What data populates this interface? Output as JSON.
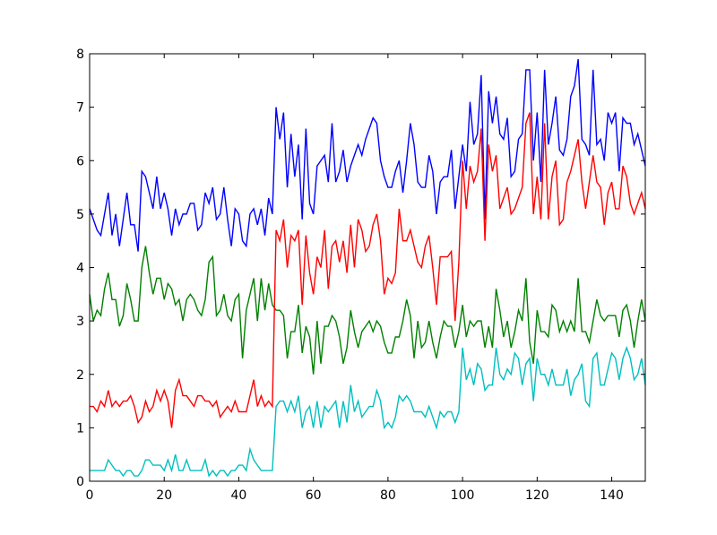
{
  "chart_data": {
    "type": "line",
    "title": "",
    "xlabel": "",
    "ylabel": "",
    "xlim": [
      0,
      149
    ],
    "ylim": [
      0,
      8
    ],
    "x_ticks": [
      0,
      20,
      40,
      60,
      80,
      100,
      120,
      140
    ],
    "y_ticks": [
      0,
      1,
      2,
      3,
      4,
      5,
      6,
      7,
      8
    ],
    "grid": false,
    "legend": "none",
    "series": [
      {
        "color": "#0000ff",
        "values": [
          5.1,
          4.9,
          4.7,
          4.6,
          5.0,
          5.4,
          4.6,
          5.0,
          4.4,
          4.9,
          5.4,
          4.8,
          4.8,
          4.3,
          5.8,
          5.7,
          5.4,
          5.1,
          5.7,
          5.1,
          5.4,
          5.1,
          4.6,
          5.1,
          4.8,
          5.0,
          5.0,
          5.2,
          5.2,
          4.7,
          4.8,
          5.4,
          5.2,
          5.5,
          4.9,
          5.0,
          5.5,
          4.9,
          4.4,
          5.1,
          5.0,
          4.5,
          4.4,
          5.0,
          5.1,
          4.8,
          5.1,
          4.6,
          5.3,
          5.0,
          7.0,
          6.4,
          6.9,
          5.5,
          6.5,
          5.7,
          6.3,
          4.9,
          6.6,
          5.2,
          5.0,
          5.9,
          6.0,
          6.1,
          5.6,
          6.7,
          5.6,
          5.8,
          6.2,
          5.6,
          5.9,
          6.1,
          6.3,
          6.1,
          6.4,
          6.6,
          6.8,
          6.7,
          6.0,
          5.7,
          5.5,
          5.5,
          5.8,
          6.0,
          5.4,
          6.0,
          6.7,
          6.3,
          5.6,
          5.5,
          5.5,
          6.1,
          5.8,
          5.0,
          5.6,
          5.7,
          5.7,
          6.2,
          5.1,
          5.7,
          6.3,
          5.8,
          7.1,
          6.3,
          6.5,
          7.6,
          4.9,
          7.3,
          6.7,
          7.2,
          6.5,
          6.4,
          6.8,
          5.7,
          5.8,
          6.4,
          6.5,
          7.7,
          7.7,
          6.0,
          6.9,
          5.6,
          7.7,
          6.3,
          6.7,
          7.2,
          6.2,
          6.1,
          6.4,
          7.2,
          7.4,
          7.9,
          6.4,
          6.3,
          6.1,
          7.7,
          6.3,
          6.4,
          6.0,
          6.9,
          6.7,
          6.9,
          5.8,
          6.8,
          6.7,
          6.7,
          6.3,
          6.5,
          6.2,
          5.9
        ]
      },
      {
        "color": "#008000",
        "values": [
          3.5,
          3.0,
          3.2,
          3.1,
          3.6,
          3.9,
          3.4,
          3.4,
          2.9,
          3.1,
          3.7,
          3.4,
          3.0,
          3.0,
          4.0,
          4.4,
          3.9,
          3.5,
          3.8,
          3.8,
          3.4,
          3.7,
          3.6,
          3.3,
          3.4,
          3.0,
          3.4,
          3.5,
          3.4,
          3.2,
          3.1,
          3.4,
          4.1,
          4.2,
          3.1,
          3.2,
          3.5,
          3.1,
          3.0,
          3.4,
          3.5,
          2.3,
          3.2,
          3.5,
          3.8,
          3.0,
          3.8,
          3.2,
          3.7,
          3.3,
          3.2,
          3.2,
          3.1,
          2.3,
          2.8,
          2.8,
          3.3,
          2.4,
          2.9,
          2.7,
          2.0,
          3.0,
          2.2,
          2.9,
          2.9,
          3.1,
          3.0,
          2.7,
          2.2,
          2.5,
          3.2,
          2.8,
          2.5,
          2.8,
          2.9,
          3.0,
          2.8,
          3.0,
          2.9,
          2.6,
          2.4,
          2.4,
          2.7,
          2.7,
          3.0,
          3.4,
          3.1,
          2.3,
          3.0,
          2.5,
          2.6,
          3.0,
          2.6,
          2.3,
          2.7,
          3.0,
          2.9,
          2.9,
          2.5,
          2.8,
          3.3,
          2.7,
          3.0,
          2.9,
          3.0,
          3.0,
          2.5,
          2.9,
          2.5,
          3.6,
          3.2,
          2.7,
          3.0,
          2.5,
          2.8,
          3.2,
          3.0,
          3.8,
          2.6,
          2.2,
          3.2,
          2.8,
          2.8,
          2.7,
          3.3,
          3.2,
          2.8,
          3.0,
          2.8,
          3.0,
          2.8,
          3.8,
          2.8,
          2.8,
          2.6,
          3.0,
          3.4,
          3.1,
          3.0,
          3.1,
          3.1,
          3.1,
          2.7,
          3.2,
          3.3,
          3.0,
          2.5,
          3.0,
          3.4,
          3.0
        ]
      },
      {
        "color": "#ff0000",
        "values": [
          1.4,
          1.4,
          1.3,
          1.5,
          1.4,
          1.7,
          1.4,
          1.5,
          1.4,
          1.5,
          1.5,
          1.6,
          1.4,
          1.1,
          1.2,
          1.5,
          1.3,
          1.4,
          1.7,
          1.5,
          1.7,
          1.5,
          1.0,
          1.7,
          1.9,
          1.6,
          1.6,
          1.5,
          1.4,
          1.6,
          1.6,
          1.5,
          1.5,
          1.4,
          1.5,
          1.2,
          1.3,
          1.4,
          1.3,
          1.5,
          1.3,
          1.3,
          1.3,
          1.6,
          1.9,
          1.4,
          1.6,
          1.4,
          1.5,
          1.4,
          4.7,
          4.5,
          4.9,
          4.0,
          4.6,
          4.5,
          4.7,
          3.3,
          4.6,
          3.9,
          3.5,
          4.2,
          4.0,
          4.7,
          3.6,
          4.4,
          4.5,
          4.1,
          4.5,
          3.9,
          4.8,
          4.0,
          4.9,
          4.7,
          4.3,
          4.4,
          4.8,
          5.0,
          4.5,
          3.5,
          3.8,
          3.7,
          3.9,
          5.1,
          4.5,
          4.5,
          4.7,
          4.4,
          4.1,
          4.0,
          4.4,
          4.6,
          4.0,
          3.3,
          4.2,
          4.2,
          4.2,
          4.3,
          3.0,
          4.1,
          6.0,
          5.1,
          5.9,
          5.6,
          5.8,
          6.6,
          4.5,
          6.3,
          5.8,
          6.1,
          5.1,
          5.3,
          5.5,
          5.0,
          5.1,
          5.3,
          5.5,
          6.7,
          6.9,
          5.0,
          5.7,
          4.9,
          6.7,
          4.9,
          5.7,
          6.0,
          4.8,
          4.9,
          5.6,
          5.8,
          6.1,
          6.4,
          5.6,
          5.1,
          5.6,
          6.1,
          5.6,
          5.5,
          4.8,
          5.4,
          5.6,
          5.1,
          5.1,
          5.9,
          5.7,
          5.2,
          5.0,
          5.2,
          5.4,
          5.1
        ]
      },
      {
        "color": "#00bfbf",
        "values": [
          0.2,
          0.2,
          0.2,
          0.2,
          0.2,
          0.4,
          0.3,
          0.2,
          0.2,
          0.1,
          0.2,
          0.2,
          0.1,
          0.1,
          0.2,
          0.4,
          0.4,
          0.3,
          0.3,
          0.3,
          0.2,
          0.4,
          0.2,
          0.5,
          0.2,
          0.2,
          0.4,
          0.2,
          0.2,
          0.2,
          0.2,
          0.4,
          0.1,
          0.2,
          0.1,
          0.2,
          0.2,
          0.1,
          0.2,
          0.2,
          0.3,
          0.3,
          0.2,
          0.6,
          0.4,
          0.3,
          0.2,
          0.2,
          0.2,
          0.2,
          1.4,
          1.5,
          1.5,
          1.3,
          1.5,
          1.3,
          1.6,
          1.0,
          1.3,
          1.4,
          1.0,
          1.5,
          1.0,
          1.4,
          1.3,
          1.4,
          1.5,
          1.0,
          1.5,
          1.1,
          1.8,
          1.3,
          1.5,
          1.2,
          1.3,
          1.4,
          1.4,
          1.7,
          1.5,
          1.0,
          1.1,
          1.0,
          1.2,
          1.6,
          1.5,
          1.6,
          1.5,
          1.3,
          1.3,
          1.3,
          1.2,
          1.4,
          1.2,
          1.0,
          1.3,
          1.2,
          1.3,
          1.3,
          1.1,
          1.3,
          2.5,
          1.9,
          2.1,
          1.8,
          2.2,
          2.1,
          1.7,
          1.8,
          1.8,
          2.5,
          2.0,
          1.9,
          2.1,
          2.0,
          2.4,
          2.3,
          1.8,
          2.2,
          2.3,
          1.5,
          2.3,
          2.0,
          2.0,
          1.8,
          2.1,
          1.8,
          1.8,
          1.8,
          2.1,
          1.6,
          1.9,
          2.0,
          2.2,
          1.5,
          1.4,
          2.3,
          2.4,
          1.8,
          1.8,
          2.1,
          2.4,
          2.3,
          1.9,
          2.3,
          2.5,
          2.3,
          1.9,
          2.0,
          2.3,
          1.8
        ]
      }
    ]
  }
}
